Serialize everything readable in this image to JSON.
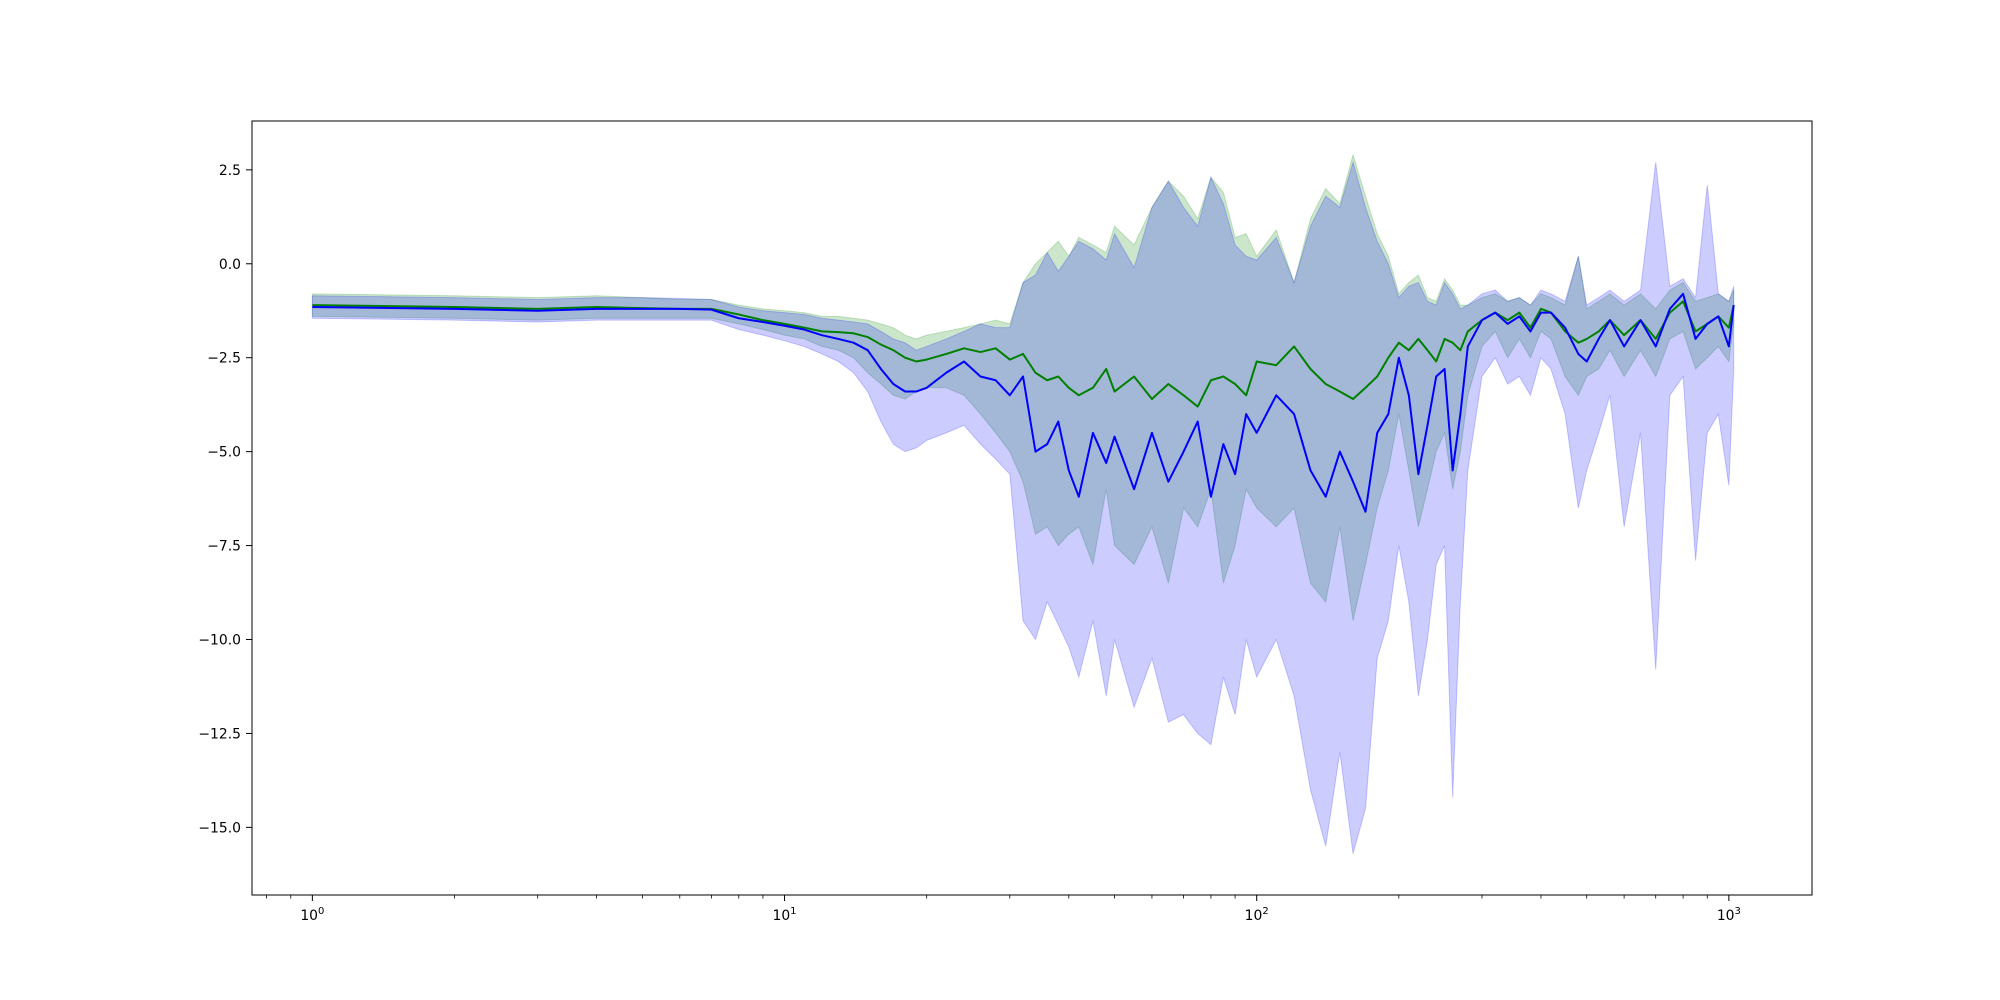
{
  "chart_data": {
    "type": "line",
    "title": "",
    "xlabel": "",
    "ylabel": "",
    "x_scale": "log",
    "xlim": [
      0.745,
      1500
    ],
    "ylim": [
      -16.8,
      3.8
    ],
    "grid": false,
    "legend": "none",
    "x_tick_labels": [
      {
        "base": "10",
        "exp": "0",
        "value": 1
      },
      {
        "base": "10",
        "exp": "1",
        "value": 10
      },
      {
        "base": "10",
        "exp": "2",
        "value": 100
      },
      {
        "base": "10",
        "exp": "3",
        "value": 1000
      }
    ],
    "y_tick_labels": [
      {
        "text": "2.5",
        "value": 2.5
      },
      {
        "text": "0.0",
        "value": 0.0
      },
      {
        "text": "−2.5",
        "value": -2.5
      },
      {
        "text": "−5.0",
        "value": -5.0
      },
      {
        "text": "−7.5",
        "value": -7.5
      },
      {
        "text": "−10.0",
        "value": -10.0
      },
      {
        "text": "−12.5",
        "value": -12.5
      },
      {
        "text": "−15.0",
        "value": -15.0
      }
    ],
    "colors": {
      "green_line": "#008000",
      "blue_line": "#0000ff",
      "green_band": "#008000",
      "blue_band": "#0000ff"
    },
    "band_opacity": 0.2,
    "series": [
      {
        "color_key": "green",
        "x": [
          1,
          2,
          3,
          4,
          5,
          6,
          7,
          8,
          9,
          10,
          11,
          12,
          13,
          14,
          15,
          16,
          17,
          18,
          19,
          20,
          22,
          24,
          26,
          28,
          30,
          32,
          34,
          36,
          38,
          40,
          42,
          45,
          48,
          50,
          55,
          60,
          65,
          70,
          75,
          80,
          85,
          90,
          95,
          100,
          110,
          120,
          130,
          140,
          150,
          160,
          170,
          180,
          190,
          200,
          210,
          220,
          230,
          240,
          250,
          260,
          270,
          280,
          300,
          320,
          340,
          360,
          380,
          400,
          420,
          450,
          480,
          500,
          530,
          560,
          600,
          650,
          700,
          750,
          800,
          850,
          900,
          950,
          1000,
          1024
        ],
        "values": [
          -1.1,
          -1.15,
          -1.2,
          -1.15,
          -1.18,
          -1.2,
          -1.2,
          -1.35,
          -1.5,
          -1.6,
          -1.7,
          -1.8,
          -1.82,
          -1.85,
          -1.95,
          -2.15,
          -2.3,
          -2.5,
          -2.6,
          -2.55,
          -2.4,
          -2.25,
          -2.35,
          -2.25,
          -2.55,
          -2.4,
          -2.9,
          -3.1,
          -3.0,
          -3.3,
          -3.5,
          -3.3,
          -2.8,
          -3.4,
          -3.0,
          -3.6,
          -3.2,
          -3.5,
          -3.8,
          -3.1,
          -3.0,
          -3.2,
          -3.5,
          -2.6,
          -2.7,
          -2.2,
          -2.8,
          -3.2,
          -3.4,
          -3.6,
          -3.3,
          -3.0,
          -2.5,
          -2.1,
          -2.3,
          -2.0,
          -2.3,
          -2.6,
          -2.0,
          -2.1,
          -2.3,
          -1.8,
          -1.5,
          -1.3,
          -1.5,
          -1.3,
          -1.7,
          -1.2,
          -1.3,
          -1.8,
          -2.1,
          -2.0,
          -1.8,
          -1.5,
          -1.9,
          -1.5,
          -2.0,
          -1.3,
          -1.0,
          -1.8,
          -1.6,
          -1.4,
          -1.7,
          -1.1
        ],
        "lower": [
          -1.4,
          -1.45,
          -1.5,
          -1.45,
          -1.45,
          -1.45,
          -1.45,
          -1.6,
          -1.75,
          -1.9,
          -2.0,
          -2.2,
          -2.3,
          -2.5,
          -2.9,
          -3.2,
          -3.5,
          -3.6,
          -3.4,
          -3.3,
          -3.3,
          -3.5,
          -4.0,
          -4.5,
          -5.0,
          -5.8,
          -7.2,
          -7.0,
          -7.5,
          -7.2,
          -7.0,
          -8.0,
          -6.0,
          -7.5,
          -8.0,
          -7.0,
          -8.5,
          -6.5,
          -7.0,
          -6.0,
          -8.5,
          -7.5,
          -6.0,
          -6.5,
          -7.0,
          -6.5,
          -8.5,
          -9.0,
          -7.0,
          -9.5,
          -8.0,
          -6.5,
          -5.5,
          -4.0,
          -5.5,
          -7.0,
          -6.0,
          -5.0,
          -4.5,
          -6.0,
          -5.0,
          -3.5,
          -2.2,
          -1.8,
          -2.5,
          -2.0,
          -2.5,
          -1.8,
          -2.0,
          -3.0,
          -3.5,
          -3.0,
          -2.8,
          -2.3,
          -3.0,
          -2.3,
          -3.0,
          -2.0,
          -1.8,
          -2.8,
          -2.5,
          -2.2,
          -2.6,
          -1.6
        ],
        "upper": [
          -0.8,
          -0.85,
          -0.9,
          -0.85,
          -0.9,
          -0.95,
          -0.95,
          -1.1,
          -1.2,
          -1.25,
          -1.3,
          -1.4,
          -1.4,
          -1.45,
          -1.5,
          -1.6,
          -1.7,
          -1.9,
          -2.0,
          -1.9,
          -1.8,
          -1.7,
          -1.6,
          -1.5,
          -1.6,
          -0.5,
          0.0,
          0.3,
          0.6,
          0.2,
          0.7,
          0.5,
          0.3,
          1.0,
          0.5,
          1.5,
          2.2,
          1.8,
          1.2,
          2.3,
          1.9,
          0.7,
          0.8,
          0.2,
          0.9,
          -0.5,
          1.2,
          2.0,
          1.6,
          2.9,
          1.8,
          0.8,
          0.2,
          -0.8,
          -0.5,
          -0.3,
          -0.9,
          -1.0,
          -0.4,
          -0.7,
          -1.1,
          -1.1,
          -0.9,
          -0.8,
          -1.0,
          -0.9,
          -1.1,
          -0.8,
          -0.9,
          -1.1,
          0.2,
          -1.2,
          -1.0,
          -0.8,
          -1.1,
          -0.8,
          -1.2,
          -0.7,
          -0.5,
          -1.0,
          -0.9,
          -0.8,
          -1.0,
          -0.7
        ]
      },
      {
        "color_key": "blue",
        "x": [
          1,
          2,
          3,
          4,
          5,
          6,
          7,
          8,
          9,
          10,
          11,
          12,
          13,
          14,
          15,
          16,
          17,
          18,
          19,
          20,
          22,
          24,
          26,
          28,
          30,
          32,
          34,
          36,
          38,
          40,
          42,
          45,
          48,
          50,
          55,
          60,
          65,
          70,
          75,
          80,
          85,
          90,
          95,
          100,
          110,
          120,
          130,
          140,
          150,
          160,
          170,
          180,
          190,
          200,
          210,
          220,
          230,
          240,
          250,
          260,
          270,
          280,
          300,
          320,
          340,
          360,
          380,
          400,
          420,
          450,
          480,
          500,
          530,
          560,
          600,
          650,
          700,
          750,
          800,
          850,
          900,
          950,
          1000,
          1024
        ],
        "values": [
          -1.15,
          -1.2,
          -1.25,
          -1.2,
          -1.2,
          -1.2,
          -1.22,
          -1.45,
          -1.55,
          -1.65,
          -1.75,
          -1.9,
          -2.0,
          -2.1,
          -2.3,
          -2.8,
          -3.2,
          -3.4,
          -3.4,
          -3.3,
          -2.9,
          -2.6,
          -3.0,
          -3.1,
          -3.5,
          -3.0,
          -5.0,
          -4.8,
          -4.2,
          -5.5,
          -6.2,
          -4.5,
          -5.3,
          -4.6,
          -6.0,
          -4.5,
          -5.8,
          -5.0,
          -4.2,
          -6.2,
          -4.8,
          -5.6,
          -4.0,
          -4.5,
          -3.5,
          -4.0,
          -5.5,
          -6.2,
          -5.0,
          -5.8,
          -6.6,
          -4.5,
          -4.0,
          -2.5,
          -3.5,
          -5.6,
          -4.3,
          -3.0,
          -2.8,
          -5.5,
          -4.0,
          -2.2,
          -1.5,
          -1.3,
          -1.6,
          -1.4,
          -1.8,
          -1.3,
          -1.3,
          -1.7,
          -2.4,
          -2.6,
          -2.0,
          -1.5,
          -2.2,
          -1.5,
          -2.2,
          -1.2,
          -0.8,
          -2.0,
          -1.6,
          -1.4,
          -2.2,
          -1.1
        ],
        "lower": [
          -1.45,
          -1.5,
          -1.55,
          -1.5,
          -1.5,
          -1.5,
          -1.5,
          -1.75,
          -1.9,
          -2.05,
          -2.2,
          -2.4,
          -2.6,
          -2.9,
          -3.4,
          -4.2,
          -4.8,
          -5.0,
          -4.9,
          -4.7,
          -4.5,
          -4.3,
          -4.8,
          -5.2,
          -5.6,
          -9.5,
          -10.0,
          -9.0,
          -9.6,
          -10.2,
          -11.0,
          -9.5,
          -11.5,
          -10.0,
          -11.8,
          -10.5,
          -12.2,
          -12.0,
          -12.5,
          -12.8,
          -11.0,
          -12.0,
          -10.0,
          -11.0,
          -10.0,
          -11.5,
          -14.0,
          -15.5,
          -13.0,
          -15.7,
          -14.5,
          -10.5,
          -9.5,
          -7.5,
          -9.0,
          -11.5,
          -10.0,
          -8.0,
          -7.5,
          -14.2,
          -9.0,
          -5.5,
          -3.0,
          -2.5,
          -3.2,
          -3.0,
          -3.5,
          -2.5,
          -2.8,
          -4.0,
          -6.5,
          -5.5,
          -4.5,
          -3.5,
          -7.0,
          -4.5,
          -10.8,
          -3.5,
          -3.0,
          -7.9,
          -4.5,
          -4.0,
          -5.9,
          -2.8
        ],
        "upper": [
          -0.85,
          -0.9,
          -0.95,
          -0.9,
          -0.9,
          -0.92,
          -0.95,
          -1.15,
          -1.25,
          -1.3,
          -1.35,
          -1.45,
          -1.5,
          -1.55,
          -1.6,
          -1.8,
          -2.0,
          -2.1,
          -2.3,
          -2.2,
          -2.0,
          -1.8,
          -1.6,
          -1.7,
          -1.7,
          -0.5,
          -0.3,
          0.3,
          -0.2,
          0.2,
          0.6,
          0.4,
          0.1,
          0.8,
          -0.1,
          1.5,
          2.2,
          1.5,
          1.0,
          2.3,
          1.6,
          0.5,
          0.2,
          0.1,
          0.7,
          -0.5,
          1.0,
          1.8,
          1.5,
          2.7,
          1.5,
          0.6,
          0.0,
          -0.9,
          -0.6,
          -0.5,
          -1.0,
          -1.1,
          -0.5,
          -0.8,
          -1.2,
          -1.1,
          -0.8,
          -0.7,
          -1.0,
          -0.9,
          -1.1,
          -0.7,
          -0.8,
          -1.0,
          0.2,
          -1.1,
          -0.9,
          -0.7,
          -1.0,
          -0.7,
          2.7,
          -0.6,
          -0.4,
          -0.9,
          2.1,
          -0.8,
          -1.0,
          -0.6
        ]
      }
    ]
  }
}
